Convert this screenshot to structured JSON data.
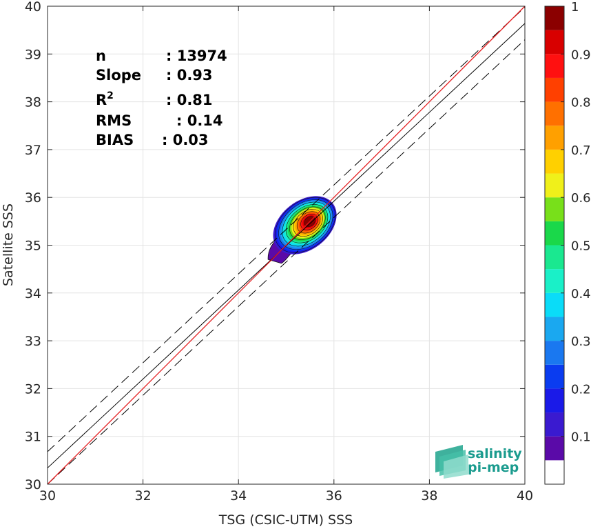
{
  "chart_data": {
    "type": "scatter",
    "xlabel": "TSG (CSIC-UTM) SSS",
    "ylabel": "Satellite SSS",
    "xlim": [
      30,
      40
    ],
    "ylim": [
      30,
      40
    ],
    "xticks": [
      30,
      32,
      34,
      36,
      38,
      40
    ],
    "yticks": [
      30,
      31,
      32,
      33,
      34,
      35,
      36,
      37,
      38,
      39,
      40
    ],
    "grid": true,
    "stats": [
      {
        "key": "n",
        "value": ": 13974"
      },
      {
        "key": "Slope",
        "value": ": 0.93"
      },
      {
        "key": "R",
        "sup": "2",
        "value": ": 0.81"
      },
      {
        "key": "RMS",
        "value": ": 0.14"
      },
      {
        "key": "BIAS",
        "value": ": 0.03"
      }
    ],
    "lines": {
      "identity": {
        "x": [
          30,
          40
        ],
        "y": [
          30,
          40
        ],
        "color": "#e41a1c"
      },
      "regression": {
        "slope": 0.93,
        "intercept": 2.44,
        "color": "#000000"
      },
      "envelope_offset": 0.34
    },
    "density_center": {
      "x": 35.5,
      "y": 35.5
    },
    "colorbar": {
      "ticks": [
        0.1,
        0.2,
        0.3,
        0.4,
        0.5,
        0.6,
        0.7,
        0.8,
        0.9,
        1
      ],
      "range": [
        0,
        1
      ],
      "levels": [
        {
          "from": 0.0,
          "to": 0.05,
          "color": "#ffffff"
        },
        {
          "from": 0.05,
          "to": 0.1,
          "color": "#5a0aa8"
        },
        {
          "from": 0.1,
          "to": 0.15,
          "color": "#3a1ad0"
        },
        {
          "from": 0.15,
          "to": 0.2,
          "color": "#1a1ae8"
        },
        {
          "from": 0.2,
          "to": 0.25,
          "color": "#0a3cf0"
        },
        {
          "from": 0.25,
          "to": 0.3,
          "color": "#1a78f0"
        },
        {
          "from": 0.3,
          "to": 0.35,
          "color": "#1aa8f0"
        },
        {
          "from": 0.35,
          "to": 0.4,
          "color": "#0adcf8"
        },
        {
          "from": 0.4,
          "to": 0.45,
          "color": "#1af0c8"
        },
        {
          "from": 0.45,
          "to": 0.5,
          "color": "#1ae890"
        },
        {
          "from": 0.5,
          "to": 0.55,
          "color": "#1ad84a"
        },
        {
          "from": 0.55,
          "to": 0.6,
          "color": "#78e01a"
        },
        {
          "from": 0.6,
          "to": 0.65,
          "color": "#f0f01a"
        },
        {
          "from": 0.65,
          "to": 0.7,
          "color": "#ffd000"
        },
        {
          "from": 0.7,
          "to": 0.75,
          "color": "#ffa000"
        },
        {
          "from": 0.75,
          "to": 0.8,
          "color": "#ff7000"
        },
        {
          "from": 0.8,
          "to": 0.85,
          "color": "#ff4000"
        },
        {
          "from": 0.85,
          "to": 0.9,
          "color": "#ff1010"
        },
        {
          "from": 0.9,
          "to": 0.95,
          "color": "#d80000"
        },
        {
          "from": 0.95,
          "to": 1.0,
          "color": "#8b0000"
        }
      ]
    }
  },
  "logo": {
    "line1": "salinity",
    "line2": "pi-mep",
    "color": "#1a9b8e",
    "icon": "wave-stack-icon"
  }
}
